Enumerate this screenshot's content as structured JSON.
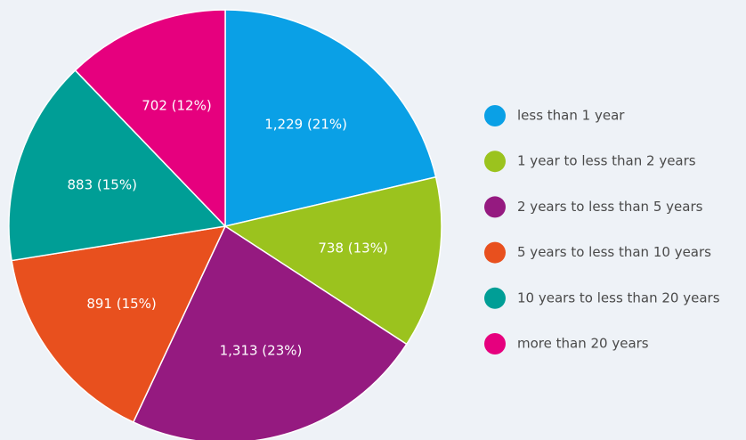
{
  "chart_data": {
    "type": "pie",
    "categories": [
      "less than 1 year",
      "1 year to less than 2 years",
      "2 years to less than 5 years",
      "5 years to less than 10 years",
      "10 years to less than 20 years",
      "more than 20 years"
    ],
    "values": [
      1229,
      738,
      1313,
      891,
      883,
      702
    ],
    "value_labels": [
      "1,229 (21%)",
      "738 (13%)",
      "1,313 (23%)",
      "891 (15%)",
      "883 (15%)",
      "702 (12%)"
    ],
    "colors": [
      "#0aa0e6",
      "#9bc31e",
      "#951a80",
      "#e8501e",
      "#009e96",
      "#e6007e"
    ],
    "legend": "right"
  }
}
